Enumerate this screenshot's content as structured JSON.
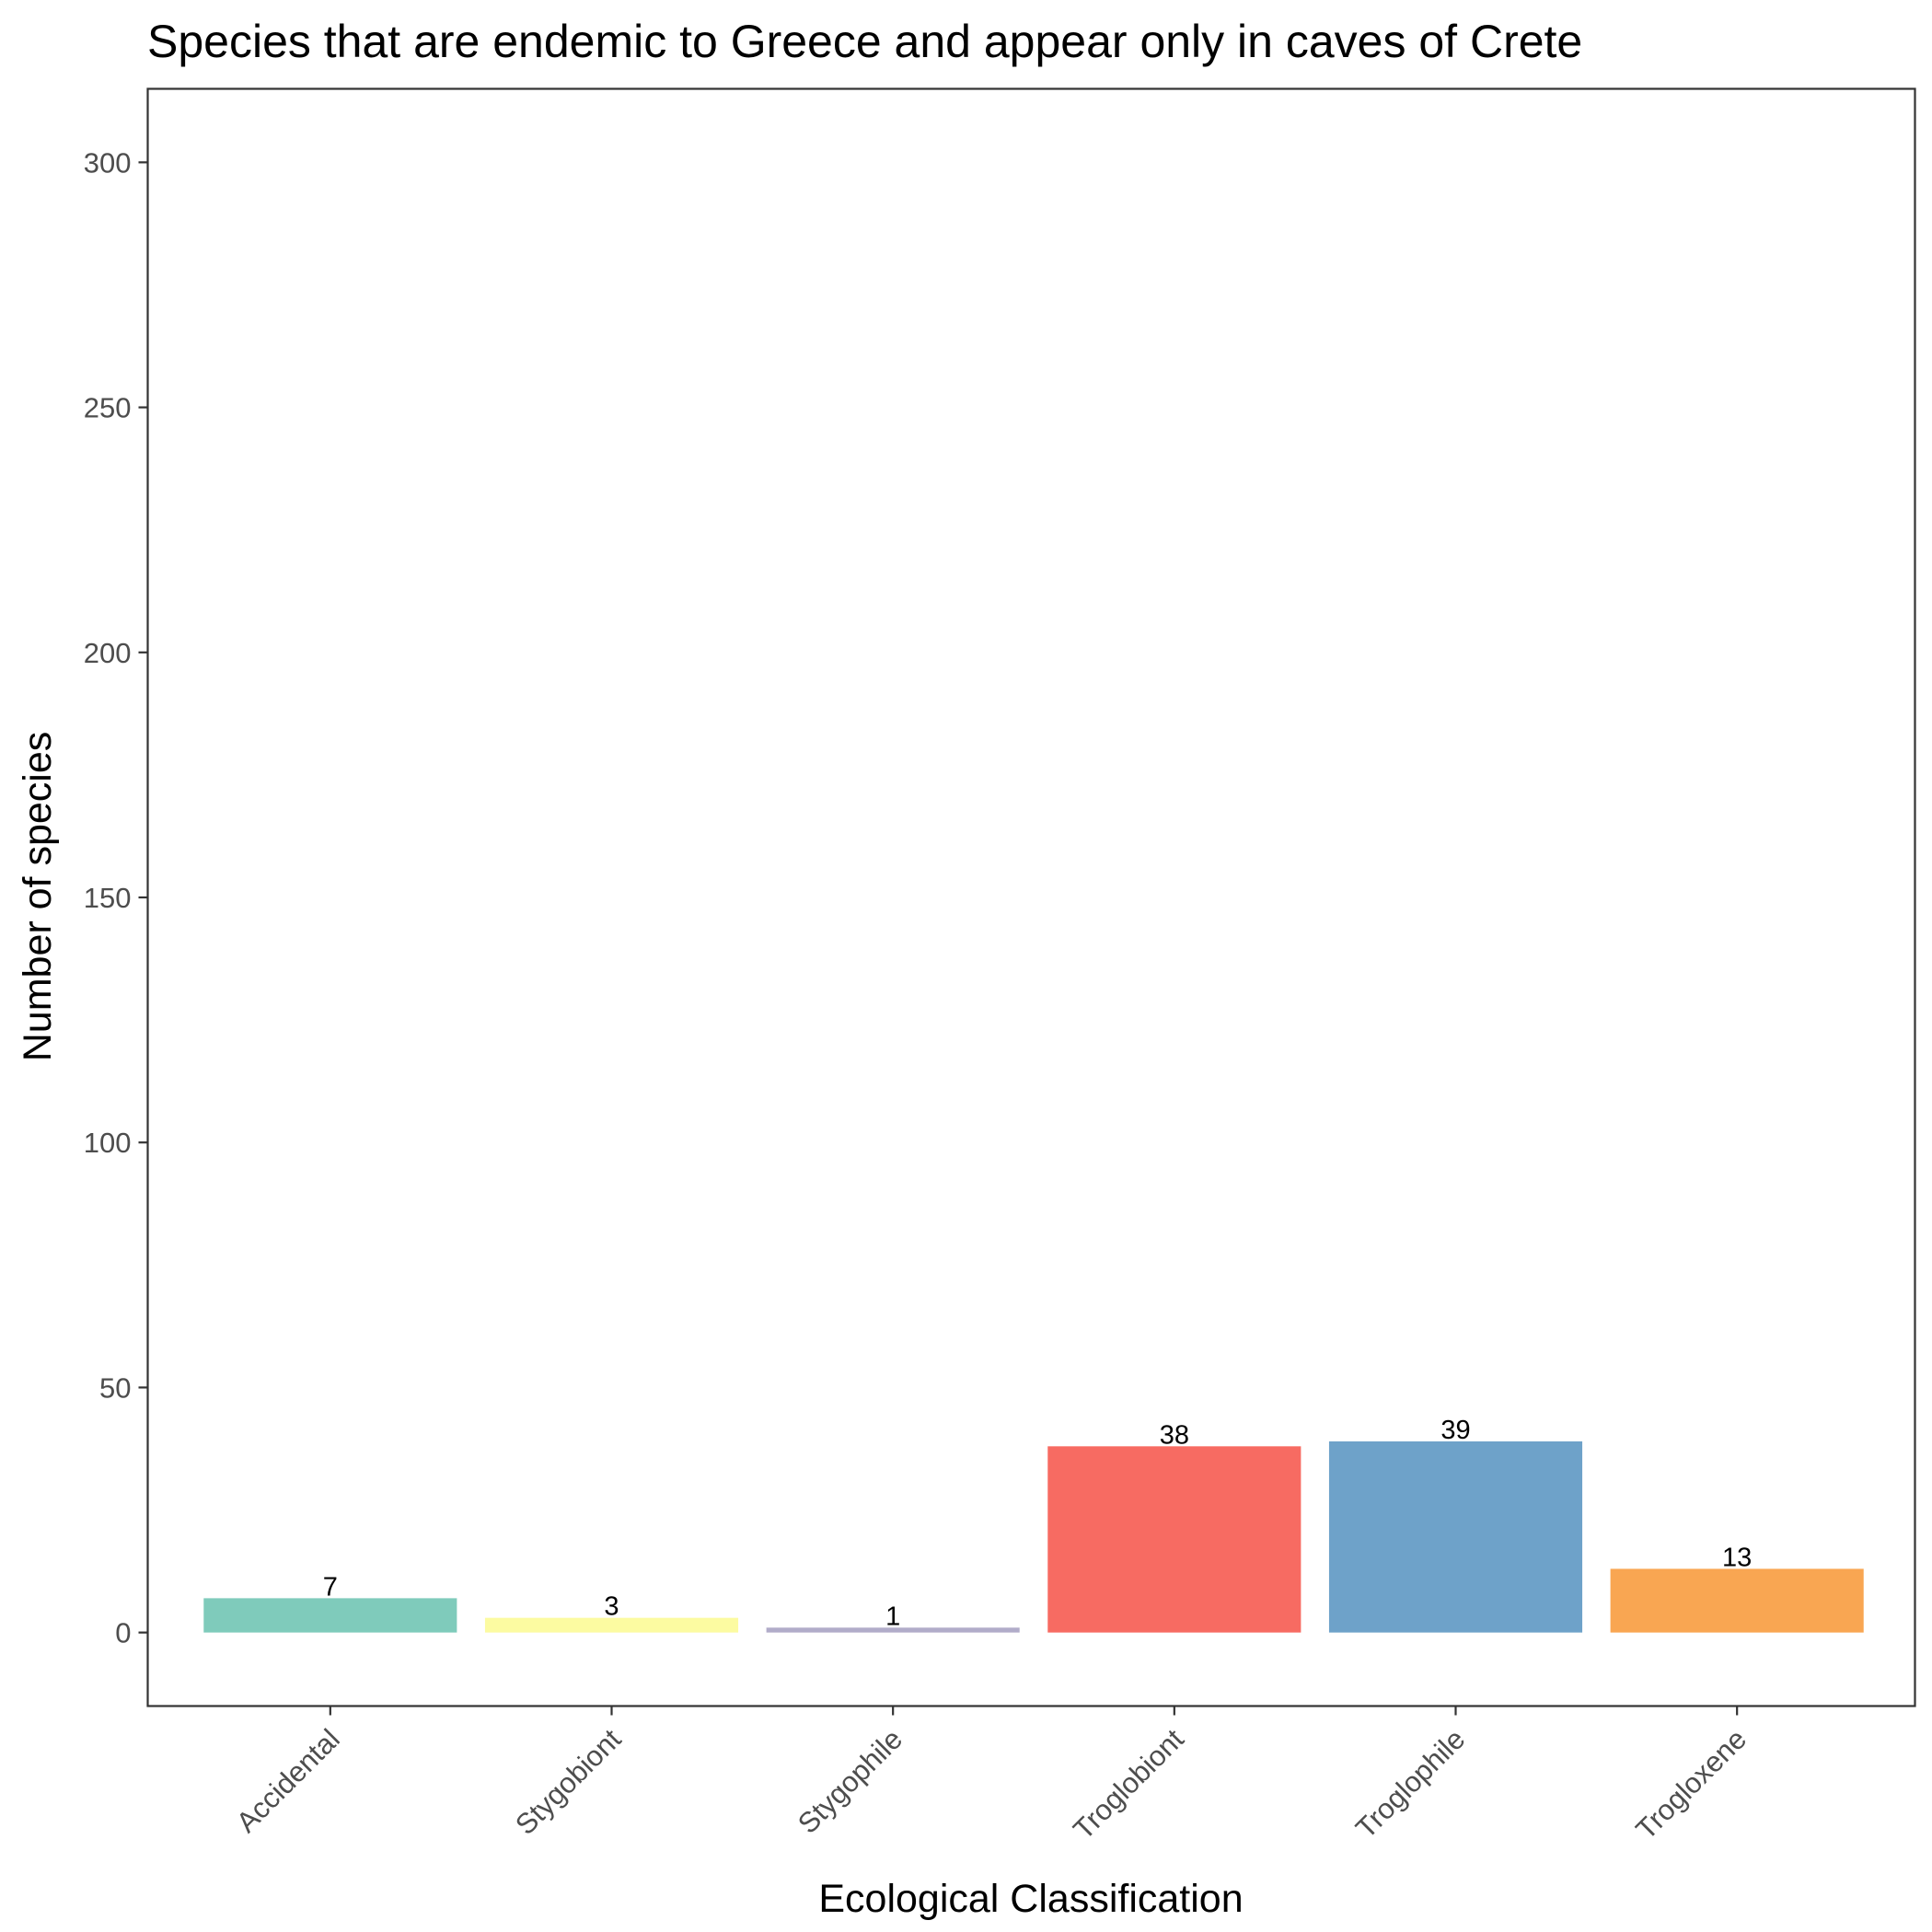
{
  "chart_data": {
    "type": "bar",
    "title": "Species that are endemic to Greece and appear only in caves of Crete",
    "xlabel": "Ecological Classification",
    "ylabel": "Number of species",
    "categories": [
      "Accidental",
      "Stygobiont",
      "Stygophile",
      "Troglobiont",
      "Troglophile",
      "Trogloxene"
    ],
    "values": [
      7,
      3,
      1,
      38,
      39,
      13
    ],
    "data_labels": [
      "7",
      "3",
      "1",
      "38",
      "39",
      "13"
    ],
    "colors": [
      "#7fcbbb",
      "#fcfba1",
      "#b1acc9",
      "#f76b62",
      "#6ea2c9",
      "#f9a652"
    ],
    "ylim": [
      -15,
      315
    ],
    "yticks": [
      0,
      50,
      100,
      150,
      200,
      250,
      300
    ],
    "ytick_labels": [
      "0",
      "50",
      "100",
      "150",
      "200",
      "250",
      "300"
    ],
    "grid": false,
    "legend": "none"
  }
}
